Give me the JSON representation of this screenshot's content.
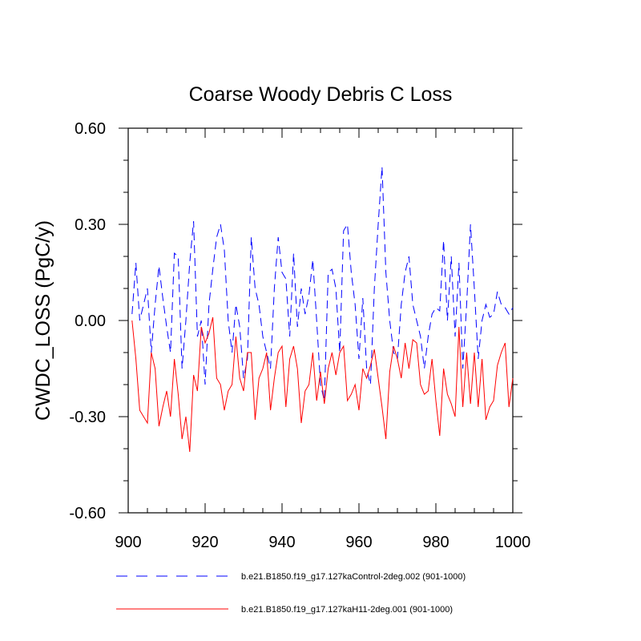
{
  "chart_data": {
    "type": "line",
    "title": "Coarse Woody Debris C Loss",
    "xlabel": "",
    "ylabel": "CWDC_LOSS  (PgC/y)",
    "xlim": [
      900,
      1000
    ],
    "ylim": [
      -0.6,
      0.6
    ],
    "xticks": [
      900,
      920,
      940,
      960,
      980,
      1000
    ],
    "xtick_labels": [
      "900",
      "920",
      "940",
      "960",
      "980",
      "1000"
    ],
    "yticks": [
      -0.6,
      -0.3,
      0.0,
      0.3,
      0.6
    ],
    "ytick_labels": [
      "-0.60",
      "-0.30",
      "0.00",
      "0.30",
      "0.60"
    ],
    "grid": false,
    "legend_position": "bottom",
    "x": [
      901,
      902,
      903,
      904,
      905,
      906,
      907,
      908,
      909,
      910,
      911,
      912,
      913,
      914,
      915,
      916,
      917,
      918,
      919,
      920,
      921,
      922,
      923,
      924,
      925,
      926,
      927,
      928,
      929,
      930,
      931,
      932,
      933,
      934,
      935,
      936,
      937,
      938,
      939,
      940,
      941,
      942,
      943,
      944,
      945,
      946,
      947,
      948,
      949,
      950,
      951,
      952,
      953,
      954,
      955,
      956,
      957,
      958,
      959,
      960,
      961,
      962,
      963,
      964,
      965,
      966,
      967,
      968,
      969,
      970,
      971,
      972,
      973,
      974,
      975,
      976,
      977,
      978,
      979,
      980,
      981,
      982,
      983,
      984,
      985,
      986,
      987,
      988,
      989,
      990,
      991,
      992,
      993,
      994,
      995,
      996,
      997,
      998,
      999,
      1000
    ],
    "series": [
      {
        "name": "b.e21.B1850.f19_g17.127kaControl-2deg.002 (901-1000)",
        "color": "#0000ff",
        "dash": "dashed",
        "values": [
          0.02,
          0.18,
          0.0,
          0.05,
          0.1,
          -0.1,
          0.05,
          0.17,
          0.07,
          -0.02,
          -0.1,
          0.21,
          0.2,
          -0.15,
          0.0,
          0.18,
          0.31,
          -0.05,
          0.0,
          -0.2,
          0.05,
          0.16,
          0.26,
          0.3,
          0.22,
          0.0,
          -0.1,
          0.05,
          -0.02,
          -0.18,
          -0.12,
          0.26,
          0.1,
          0.05,
          -0.05,
          -0.1,
          -0.15,
          0.1,
          0.26,
          0.15,
          0.13,
          -0.05,
          0.21,
          -0.02,
          0.1,
          0.02,
          0.08,
          0.19,
          0.0,
          -0.2,
          -0.25,
          0.15,
          0.16,
          0.1,
          -0.1,
          0.28,
          0.3,
          0.15,
          0.05,
          -0.12,
          0.07,
          -0.15,
          -0.2,
          0.1,
          0.3,
          0.48,
          0.15,
          0.0,
          -0.1,
          -0.12,
          0.05,
          0.15,
          0.2,
          0.05,
          0.0,
          -0.05,
          -0.15,
          -0.05,
          0.02,
          0.04,
          0.03,
          0.25,
          0.0,
          0.2,
          -0.05,
          0.18,
          -0.15,
          0.05,
          0.3,
          0.1,
          -0.12,
          0.0,
          0.05,
          0.01,
          0.02,
          0.09,
          0.05,
          0.04,
          0.02,
          0.04
        ]
      },
      {
        "name": "b.e21.B1850.f19_g17.127kaH11-2deg.001 (901-1000)",
        "color": "#ff0000",
        "dash": "solid",
        "values": [
          0.0,
          -0.12,
          -0.28,
          -0.3,
          -0.32,
          -0.1,
          -0.15,
          -0.33,
          -0.27,
          -0.22,
          -0.3,
          -0.12,
          -0.23,
          -0.37,
          -0.3,
          -0.41,
          -0.17,
          -0.22,
          -0.02,
          -0.07,
          -0.04,
          0.01,
          -0.18,
          -0.2,
          -0.28,
          -0.22,
          -0.2,
          -0.05,
          -0.18,
          -0.22,
          -0.1,
          -0.1,
          -0.31,
          -0.18,
          -0.15,
          -0.1,
          -0.28,
          -0.18,
          -0.1,
          -0.08,
          -0.27,
          -0.12,
          -0.08,
          -0.15,
          -0.32,
          -0.22,
          -0.2,
          -0.1,
          -0.25,
          -0.16,
          -0.26,
          -0.15,
          -0.1,
          -0.17,
          -0.1,
          -0.08,
          -0.25,
          -0.23,
          -0.2,
          -0.28,
          -0.15,
          -0.18,
          -0.14,
          -0.09,
          -0.18,
          -0.27,
          -0.37,
          -0.16,
          -0.08,
          -0.12,
          -0.18,
          -0.07,
          -0.15,
          -0.06,
          -0.07,
          -0.2,
          -0.23,
          -0.22,
          -0.12,
          -0.25,
          -0.36,
          -0.15,
          -0.23,
          -0.26,
          -0.3,
          -0.02,
          -0.27,
          -0.1,
          -0.26,
          -0.1,
          -0.27,
          -0.12,
          -0.31,
          -0.27,
          -0.25,
          -0.14,
          -0.1,
          -0.07,
          -0.27,
          -0.18
        ]
      }
    ]
  }
}
